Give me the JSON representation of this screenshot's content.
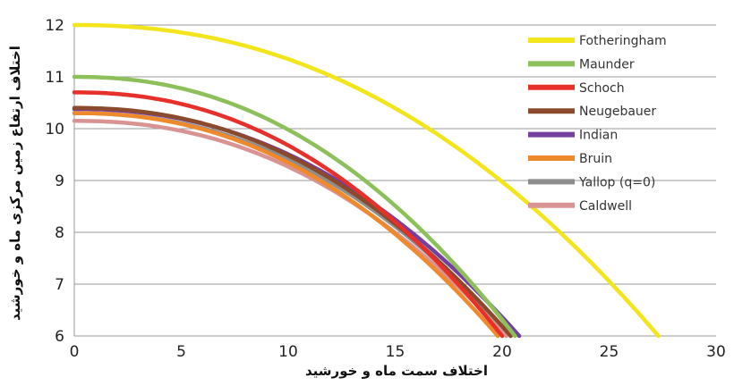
{
  "chart_data": {
    "type": "line",
    "title": "",
    "xlabel": "اختلاف سمت ماه و خورشید",
    "ylabel": "اختلاف ارتفاع زمین مرکزی ماه و خورشید",
    "xlim": [
      0,
      30
    ],
    "ylim": [
      6,
      12
    ],
    "x_ticks": [
      "0",
      "5",
      "10",
      "15",
      "20",
      "25",
      "30"
    ],
    "y_ticks": [
      "6",
      "7",
      "8",
      "9",
      "10",
      "11",
      "12"
    ],
    "grid": "horizontal",
    "legend_position": "top-right",
    "series": [
      {
        "name": "Fotheringham",
        "color": "#f2e51c",
        "y0": 12.0,
        "x_end": 27.3
      },
      {
        "name": "Maunder",
        "color": "#8dc05a",
        "y0": 11.0,
        "x_end": 20.6
      },
      {
        "name": "Schoch",
        "color": "#e8302a",
        "y0": 10.7,
        "x_end": 20.0
      },
      {
        "name": "Neugebauer",
        "color": "#8b4a2b",
        "y0": 10.4,
        "x_end": 20.4
      },
      {
        "name": "Indian",
        "color": "#7440a0",
        "y0": 10.38,
        "x_end": 20.8
      },
      {
        "name": "Bruin",
        "color": "#ef8a2c",
        "y0": 10.3,
        "x_end": 19.8
      },
      {
        "name": "Yallop (q=0)",
        "color": "#8e8e8e",
        "y0": 10.3,
        "x_end": 20.4
      },
      {
        "name": "Caldwell",
        "color": "#d99393",
        "y0": 10.15,
        "x_end": 20.2
      }
    ]
  }
}
